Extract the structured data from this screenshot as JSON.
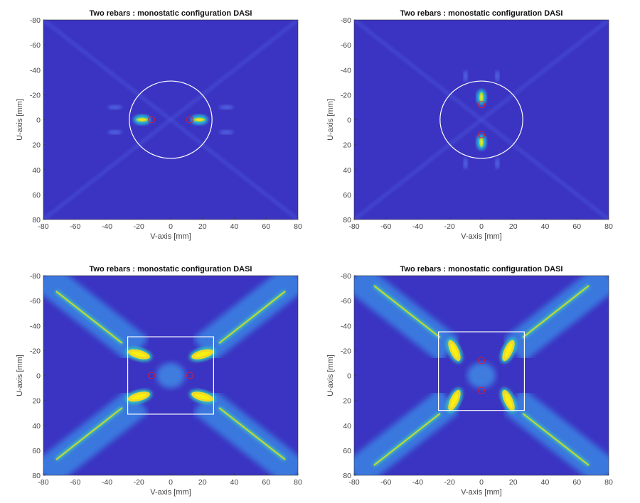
{
  "chart_data": [
    {
      "type": "heatmap",
      "title": "Two rebars : monostatic configuration DASI",
      "xlabel": "V-axis [mm]",
      "ylabel": "U-axis [mm]",
      "xlim": [
        -80,
        80
      ],
      "ylim": [
        -80,
        80
      ],
      "y_reversed": true,
      "xticks": [
        "-80",
        "-60",
        "-40",
        "-20",
        "0",
        "20",
        "40",
        "60",
        "80"
      ],
      "yticks": [
        "-80",
        "-60",
        "-40",
        "-20",
        "0",
        "20",
        "40",
        "60",
        "80"
      ],
      "colormap": "parula",
      "rebars": [
        {
          "v": -12,
          "u": 0
        },
        {
          "v": 12,
          "u": 0
        }
      ],
      "region": {
        "shape": "circle",
        "v_range": [
          -26,
          26
        ],
        "u_range": [
          -31,
          31
        ],
        "color": "#ffffff"
      },
      "peaks": [
        {
          "v": -18,
          "u": 0
        },
        {
          "v": 18,
          "u": 0
        }
      ]
    },
    {
      "type": "heatmap",
      "title": "Two rebars : monostatic configuration DASI",
      "xlabel": "V-axis [mm]",
      "ylabel": "U-axis [mm]",
      "xlim": [
        -80,
        80
      ],
      "ylim": [
        -80,
        80
      ],
      "y_reversed": true,
      "xticks": [
        "-80",
        "-60",
        "-40",
        "-20",
        "0",
        "20",
        "40",
        "60",
        "80"
      ],
      "yticks": [
        "-80",
        "-60",
        "-40",
        "-20",
        "0",
        "20",
        "40",
        "60",
        "80"
      ],
      "colormap": "parula",
      "rebars": [
        {
          "v": 0,
          "u": -12
        },
        {
          "v": 0,
          "u": 12
        }
      ],
      "region": {
        "shape": "circle",
        "v_range": [
          -26,
          26
        ],
        "u_range": [
          -31,
          31
        ],
        "color": "#ffffff"
      },
      "peaks": [
        {
          "v": 0,
          "u": -18
        },
        {
          "v": 0,
          "u": 18
        }
      ]
    },
    {
      "type": "heatmap",
      "title": "Two rebars : monostatic configuration DASI",
      "xlabel": "V-axis [mm]",
      "ylabel": "U-axis [mm]",
      "xlim": [
        -80,
        80
      ],
      "ylim": [
        -80,
        80
      ],
      "y_reversed": true,
      "xticks": [
        "-80",
        "-60",
        "-40",
        "-20",
        "0",
        "20",
        "40",
        "60",
        "80"
      ],
      "yticks": [
        "-80",
        "-60",
        "-40",
        "-20",
        "0",
        "20",
        "40",
        "60",
        "80"
      ],
      "colormap": "parula",
      "rebars": [
        {
          "v": -12,
          "u": 0
        },
        {
          "v": 12,
          "u": 0
        }
      ],
      "region": {
        "shape": "square",
        "v_range": [
          -27,
          27
        ],
        "u_range": [
          -31,
          31
        ],
        "color": "#ffffff"
      },
      "peaks": [
        {
          "v": -20,
          "u": -17
        },
        {
          "v": 20,
          "u": -17
        },
        {
          "v": -20,
          "u": 17
        },
        {
          "v": 20,
          "u": 17
        }
      ],
      "orientation": "horizontal"
    },
    {
      "type": "heatmap",
      "title": "Two rebars : monostatic configuration DASI",
      "xlabel": "V-axis [mm]",
      "ylabel": "U-axis [mm]",
      "xlim": [
        -80,
        80
      ],
      "ylim": [
        -80,
        80
      ],
      "y_reversed": true,
      "xticks": [
        "-80",
        "-60",
        "-40",
        "-20",
        "0",
        "20",
        "40",
        "60",
        "80"
      ],
      "yticks": [
        "-80",
        "-60",
        "-40",
        "-20",
        "0",
        "20",
        "40",
        "60",
        "80"
      ],
      "colormap": "parula",
      "rebars": [
        {
          "v": 0,
          "u": -12
        },
        {
          "v": 0,
          "u": 12
        }
      ],
      "region": {
        "shape": "square",
        "v_range": [
          -27,
          27
        ],
        "u_range": [
          -35,
          28
        ],
        "color": "#ffffff"
      },
      "peaks": [
        {
          "v": -17,
          "u": -20
        },
        {
          "v": 17,
          "u": -20
        },
        {
          "v": -17,
          "u": 20
        },
        {
          "v": 17,
          "u": 20
        }
      ],
      "orientation": "vertical"
    }
  ]
}
